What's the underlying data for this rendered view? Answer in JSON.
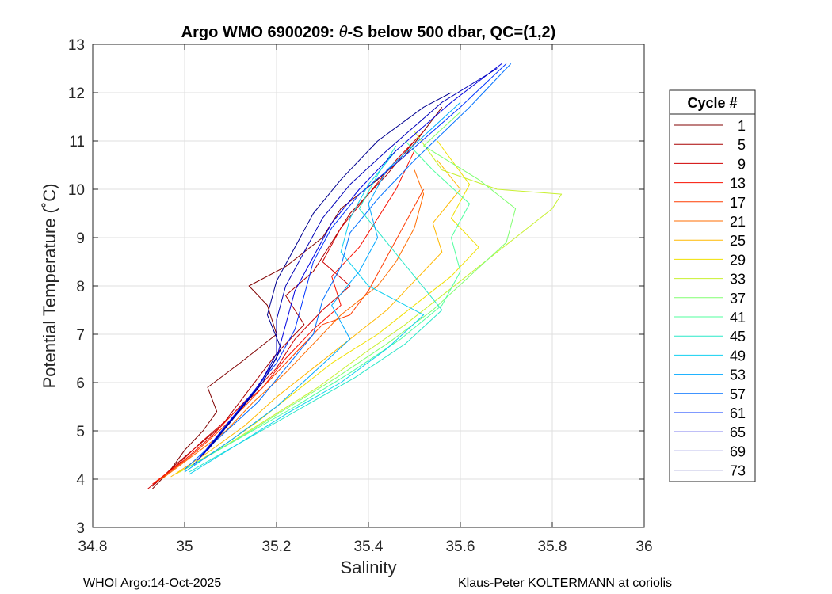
{
  "chart_data": {
    "type": "line",
    "title_prefix": "Argo WMO 6900209: ",
    "title_theta": "θ",
    "title_suffix": "-S below 500 dbar,  QC=(1,2)",
    "xlabel": "Salinity",
    "ylabel": "Potential Temperature (˚C)",
    "xlim": [
      34.8,
      36
    ],
    "ylim": [
      3,
      13
    ],
    "xticks": [
      34.8,
      35,
      35.2,
      35.4,
      35.6,
      35.8,
      36
    ],
    "xtick_labels": [
      "34.8",
      "35",
      "35.2",
      "35.4",
      "35.6",
      "35.8",
      "36"
    ],
    "yticks": [
      3,
      4,
      5,
      6,
      7,
      8,
      9,
      10,
      11,
      12,
      13
    ],
    "ytick_labels": [
      "3",
      "4",
      "5",
      "6",
      "7",
      "8",
      "9",
      "10",
      "11",
      "12",
      "13"
    ],
    "grid": true,
    "legend": {
      "title": "Cycle #",
      "placement": "right, outside",
      "entries": [
        {
          "label": "1",
          "color": "#800000"
        },
        {
          "label": "5",
          "color": "#a80000"
        },
        {
          "label": "9",
          "color": "#d00000"
        },
        {
          "label": "13",
          "color": "#f81000"
        },
        {
          "label": "17",
          "color": "#ff3c00"
        },
        {
          "label": "21",
          "color": "#ff6c00"
        },
        {
          "label": "25",
          "color": "#ffb800"
        },
        {
          "label": "29",
          "color": "#f0e000"
        },
        {
          "label": "33",
          "color": "#c8f030"
        },
        {
          "label": "37",
          "color": "#80ff70"
        },
        {
          "label": "41",
          "color": "#50ff9e"
        },
        {
          "label": "45",
          "color": "#28e8c8"
        },
        {
          "label": "49",
          "color": "#10d0f0"
        },
        {
          "label": "53",
          "color": "#00a8ff"
        },
        {
          "label": "57",
          "color": "#0070ff"
        },
        {
          "label": "61",
          "color": "#0034ff"
        },
        {
          "label": "65",
          "color": "#0000e0"
        },
        {
          "label": "69",
          "color": "#0000b8"
        },
        {
          "label": "73",
          "color": "#00008f"
        }
      ]
    },
    "series": [
      {
        "name": "1",
        "color": "#800000",
        "points": [
          [
            34.93,
            3.8
          ],
          [
            34.97,
            4.2
          ],
          [
            35.0,
            4.6
          ],
          [
            35.04,
            5.0
          ],
          [
            35.07,
            5.4
          ],
          [
            35.05,
            5.9
          ],
          [
            35.12,
            6.4
          ],
          [
            35.2,
            7.0
          ],
          [
            35.18,
            7.6
          ],
          [
            35.14,
            8.0
          ],
          [
            35.22,
            8.4
          ],
          [
            35.3,
            9.0
          ],
          [
            35.34,
            9.6
          ],
          [
            35.42,
            10.2
          ],
          [
            35.48,
            10.7
          ],
          [
            35.56,
            11.7
          ]
        ]
      },
      {
        "name": "5",
        "color": "#a80000",
        "points": [
          [
            34.93,
            3.85
          ],
          [
            34.98,
            4.3
          ],
          [
            35.03,
            4.7
          ],
          [
            35.08,
            5.1
          ],
          [
            35.12,
            5.6
          ],
          [
            35.16,
            6.1
          ],
          [
            35.2,
            6.6
          ],
          [
            35.26,
            7.2
          ],
          [
            35.22,
            7.8
          ],
          [
            35.28,
            8.3
          ],
          [
            35.32,
            8.9
          ],
          [
            35.36,
            9.5
          ],
          [
            35.44,
            10.3
          ],
          [
            35.5,
            11.0
          ]
        ]
      },
      {
        "name": "9",
        "color": "#d00000",
        "points": [
          [
            34.92,
            3.8
          ],
          [
            34.99,
            4.35
          ],
          [
            35.04,
            4.8
          ],
          [
            35.1,
            5.3
          ],
          [
            35.15,
            5.8
          ],
          [
            35.2,
            6.3
          ],
          [
            35.24,
            6.9
          ],
          [
            35.3,
            7.5
          ],
          [
            35.36,
            8.0
          ],
          [
            35.3,
            8.5
          ],
          [
            35.34,
            9.2
          ],
          [
            35.4,
            9.9
          ],
          [
            35.46,
            10.6
          ],
          [
            35.52,
            11.2
          ]
        ]
      },
      {
        "name": "13",
        "color": "#f81000",
        "points": [
          [
            34.93,
            3.9
          ],
          [
            35.0,
            4.4
          ],
          [
            35.06,
            4.9
          ],
          [
            35.11,
            5.4
          ],
          [
            35.17,
            5.9
          ],
          [
            35.22,
            6.5
          ],
          [
            35.28,
            7.1
          ],
          [
            35.34,
            7.6
          ],
          [
            35.32,
            8.2
          ],
          [
            35.38,
            8.8
          ],
          [
            35.42,
            9.4
          ],
          [
            35.46,
            10.0
          ],
          [
            35.5,
            10.8
          ]
        ]
      },
      {
        "name": "17",
        "color": "#ff3c00",
        "points": [
          [
            34.94,
            3.95
          ],
          [
            35.01,
            4.45
          ],
          [
            35.07,
            4.95
          ],
          [
            35.13,
            5.5
          ],
          [
            35.18,
            6.0
          ],
          [
            35.24,
            6.6
          ],
          [
            35.3,
            7.2
          ],
          [
            35.36,
            7.4
          ],
          [
            35.4,
            7.9
          ],
          [
            35.44,
            8.6
          ],
          [
            35.48,
            9.3
          ],
          [
            35.52,
            10.0
          ]
        ]
      },
      {
        "name": "21",
        "color": "#ff6c00",
        "points": [
          [
            34.95,
            4.0
          ],
          [
            35.02,
            4.5
          ],
          [
            35.09,
            5.0
          ],
          [
            35.15,
            5.6
          ],
          [
            35.22,
            6.2
          ],
          [
            35.28,
            6.8
          ],
          [
            35.34,
            7.4
          ],
          [
            35.42,
            8.0
          ],
          [
            35.46,
            8.5
          ],
          [
            35.5,
            9.2
          ],
          [
            35.52,
            9.9
          ],
          [
            35.5,
            10.4
          ]
        ]
      },
      {
        "name": "25",
        "color": "#ffb800",
        "points": [
          [
            34.97,
            4.05
          ],
          [
            35.05,
            4.55
          ],
          [
            35.13,
            5.1
          ],
          [
            35.2,
            5.7
          ],
          [
            35.28,
            6.3
          ],
          [
            35.36,
            6.9
          ],
          [
            35.44,
            7.5
          ],
          [
            35.5,
            8.1
          ],
          [
            35.56,
            8.7
          ],
          [
            35.54,
            9.3
          ],
          [
            35.6,
            10.0
          ],
          [
            35.55,
            10.6
          ]
        ]
      },
      {
        "name": "29",
        "color": "#f0e000",
        "points": [
          [
            34.98,
            4.1
          ],
          [
            35.07,
            4.6
          ],
          [
            35.16,
            5.2
          ],
          [
            35.24,
            5.8
          ],
          [
            35.32,
            6.4
          ],
          [
            35.42,
            7.0
          ],
          [
            35.5,
            7.6
          ],
          [
            35.58,
            8.2
          ],
          [
            35.64,
            8.8
          ],
          [
            35.58,
            9.4
          ],
          [
            35.62,
            10.1
          ],
          [
            35.55,
            11.0
          ]
        ]
      },
      {
        "name": "33",
        "color": "#c8f030",
        "points": [
          [
            34.99,
            4.15
          ],
          [
            35.09,
            4.7
          ],
          [
            35.19,
            5.3
          ],
          [
            35.29,
            5.9
          ],
          [
            35.39,
            6.6
          ],
          [
            35.48,
            7.2
          ],
          [
            35.56,
            7.8
          ],
          [
            35.64,
            8.4
          ],
          [
            35.72,
            9.0
          ],
          [
            35.8,
            9.6
          ],
          [
            35.82,
            9.9
          ],
          [
            35.68,
            10.0
          ],
          [
            35.56,
            10.4
          ],
          [
            35.5,
            11.2
          ]
        ]
      },
      {
        "name": "37",
        "color": "#80ff70",
        "points": [
          [
            35.0,
            4.2
          ],
          [
            35.11,
            4.8
          ],
          [
            35.22,
            5.45
          ],
          [
            35.33,
            6.1
          ],
          [
            35.44,
            6.8
          ],
          [
            35.54,
            7.5
          ],
          [
            35.62,
            8.2
          ],
          [
            35.7,
            8.9
          ],
          [
            35.72,
            9.6
          ],
          [
            35.64,
            10.2
          ],
          [
            35.52,
            10.9
          ],
          [
            35.6,
            11.6
          ]
        ]
      },
      {
        "name": "41",
        "color": "#50ff9e",
        "points": [
          [
            35.0,
            4.2
          ],
          [
            35.12,
            4.85
          ],
          [
            35.24,
            5.5
          ],
          [
            35.36,
            6.2
          ],
          [
            35.47,
            6.9
          ],
          [
            35.56,
            7.6
          ],
          [
            35.6,
            8.3
          ],
          [
            35.58,
            9.0
          ],
          [
            35.62,
            9.7
          ],
          [
            35.54,
            10.4
          ],
          [
            35.48,
            11.0
          ]
        ]
      },
      {
        "name": "45",
        "color": "#28e8c8",
        "points": [
          [
            35.01,
            4.15
          ],
          [
            35.13,
            4.8
          ],
          [
            35.25,
            5.45
          ],
          [
            35.37,
            6.1
          ],
          [
            35.48,
            6.8
          ],
          [
            35.56,
            7.5
          ],
          [
            35.5,
            8.2
          ],
          [
            35.44,
            8.9
          ],
          [
            35.38,
            9.6
          ],
          [
            35.42,
            10.3
          ],
          [
            35.46,
            10.9
          ]
        ]
      },
      {
        "name": "49",
        "color": "#10d0f0",
        "points": [
          [
            35.01,
            4.1
          ],
          [
            35.12,
            4.75
          ],
          [
            35.23,
            5.4
          ],
          [
            35.34,
            6.0
          ],
          [
            35.44,
            6.7
          ],
          [
            35.52,
            7.4
          ],
          [
            35.4,
            8.0
          ],
          [
            35.34,
            8.7
          ],
          [
            35.36,
            9.4
          ],
          [
            35.4,
            10.1
          ],
          [
            35.46,
            10.8
          ]
        ]
      },
      {
        "name": "53",
        "color": "#00a8ff",
        "points": [
          [
            35.0,
            4.15
          ],
          [
            35.1,
            4.8
          ],
          [
            35.2,
            5.5
          ],
          [
            35.28,
            6.2
          ],
          [
            35.36,
            6.9
          ],
          [
            35.32,
            7.6
          ],
          [
            35.38,
            8.3
          ],
          [
            35.42,
            9.0
          ],
          [
            35.4,
            9.7
          ],
          [
            35.44,
            10.4
          ],
          [
            35.52,
            11.1
          ],
          [
            35.6,
            11.8
          ]
        ]
      },
      {
        "name": "57",
        "color": "#0070ff",
        "points": [
          [
            35.0,
            4.2
          ],
          [
            35.08,
            4.9
          ],
          [
            35.16,
            5.6
          ],
          [
            35.22,
            6.3
          ],
          [
            35.28,
            7.0
          ],
          [
            35.3,
            7.7
          ],
          [
            35.34,
            8.4
          ],
          [
            35.36,
            9.1
          ],
          [
            35.42,
            9.8
          ],
          [
            35.5,
            10.6
          ],
          [
            35.62,
            11.7
          ],
          [
            35.71,
            12.6
          ]
        ]
      },
      {
        "name": "61",
        "color": "#0034ff",
        "points": [
          [
            35.02,
            4.3
          ],
          [
            35.08,
            5.0
          ],
          [
            35.14,
            5.7
          ],
          [
            35.2,
            6.4
          ],
          [
            35.24,
            7.1
          ],
          [
            35.26,
            7.8
          ],
          [
            35.28,
            8.5
          ],
          [
            35.32,
            9.2
          ],
          [
            35.38,
            9.9
          ],
          [
            35.48,
            10.7
          ],
          [
            35.6,
            11.7
          ],
          [
            35.7,
            12.6
          ]
        ]
      },
      {
        "name": "65",
        "color": "#0000e0",
        "points": [
          [
            35.03,
            4.4
          ],
          [
            35.09,
            5.1
          ],
          [
            35.15,
            5.8
          ],
          [
            35.2,
            6.5
          ],
          [
            35.22,
            7.2
          ],
          [
            35.24,
            7.9
          ],
          [
            35.28,
            8.6
          ],
          [
            35.32,
            9.3
          ],
          [
            35.38,
            10.0
          ],
          [
            35.46,
            10.8
          ],
          [
            35.58,
            11.8
          ],
          [
            35.69,
            12.6
          ]
        ]
      },
      {
        "name": "69",
        "color": "#0000b8",
        "points": [
          [
            35.04,
            4.5
          ],
          [
            35.1,
            5.2
          ],
          [
            35.16,
            5.9
          ],
          [
            35.2,
            6.6
          ],
          [
            35.2,
            7.3
          ],
          [
            35.22,
            8.0
          ],
          [
            35.26,
            8.7
          ],
          [
            35.3,
            9.4
          ],
          [
            35.36,
            10.1
          ],
          [
            35.44,
            10.8
          ],
          [
            35.56,
            11.8
          ],
          [
            35.68,
            12.5
          ]
        ]
      },
      {
        "name": "73",
        "color": "#00008f",
        "points": [
          [
            35.05,
            4.6
          ],
          [
            35.11,
            5.3
          ],
          [
            35.17,
            6.0
          ],
          [
            35.21,
            6.7
          ],
          [
            35.18,
            7.4
          ],
          [
            35.2,
            8.1
          ],
          [
            35.24,
            8.8
          ],
          [
            35.28,
            9.5
          ],
          [
            35.34,
            10.2
          ],
          [
            35.42,
            11.0
          ],
          [
            35.52,
            11.7
          ],
          [
            35.58,
            12.0
          ]
        ]
      }
    ]
  },
  "footer": {
    "left": "WHOI Argo:14-Oct-2025",
    "right": "Klaus-Peter KOLTERMANN at coriolis"
  }
}
